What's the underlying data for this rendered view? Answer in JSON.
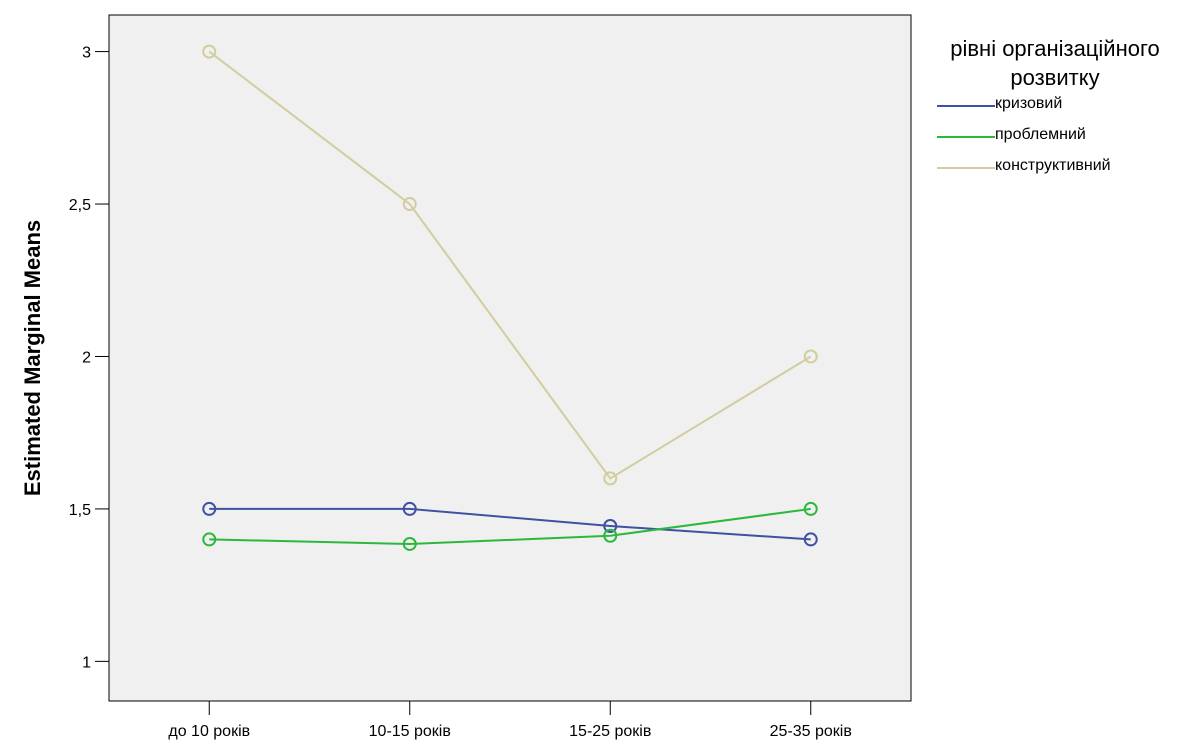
{
  "chart_data": {
    "type": "line",
    "ylabel": "Estimated Marginal Means",
    "xlabel": "",
    "categories": [
      "до 10 років",
      "10-15 років",
      "15-25 років",
      "25-35 років"
    ],
    "ylim": [
      0.87,
      3.12
    ],
    "yticks": [
      {
        "value": 1,
        "label": "1"
      },
      {
        "value": 1.5,
        "label": "1,5"
      },
      {
        "value": 2,
        "label": "2"
      },
      {
        "value": 2.5,
        "label": "2,5"
      },
      {
        "value": 3,
        "label": "3"
      }
    ],
    "grid": false,
    "legend_position": "right",
    "legend_title": "рівні організаційного розвитку",
    "series": [
      {
        "name": "кризовий",
        "color": "#3E51A3",
        "values": [
          1.5,
          1.5,
          1.444,
          1.4
        ]
      },
      {
        "name": "проблемний",
        "color": "#2DB83D",
        "values": [
          1.4,
          1.385,
          1.412,
          1.5
        ]
      },
      {
        "name": "конструктивний",
        "color": "#D2CC9E",
        "values": [
          3.0,
          2.5,
          1.6,
          2.0
        ]
      }
    ]
  }
}
